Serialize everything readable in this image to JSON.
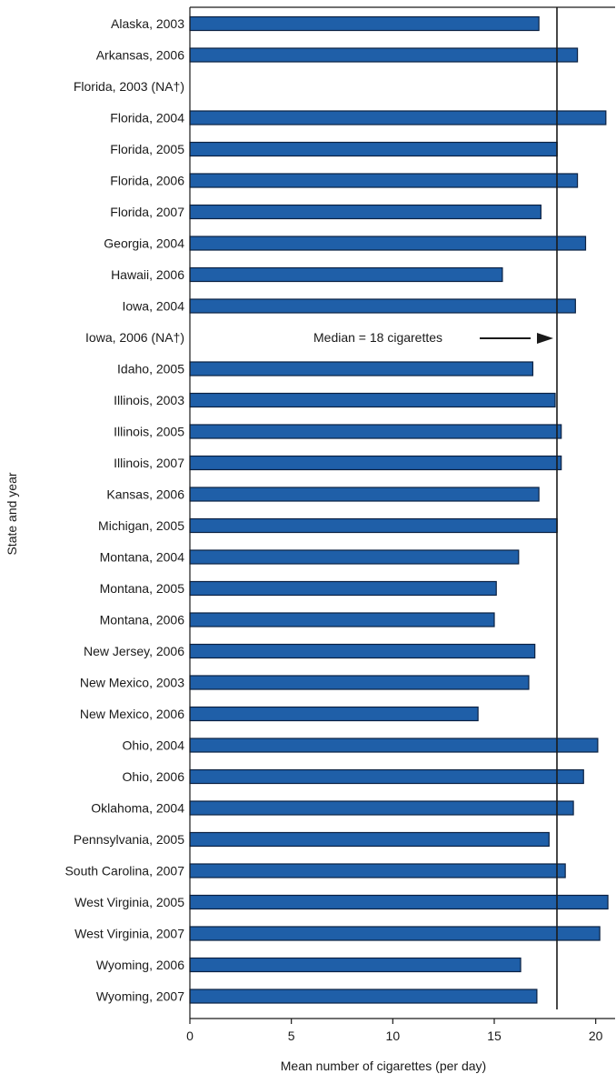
{
  "chart_data": {
    "type": "bar",
    "orientation": "horizontal",
    "xlabel": "Mean number of cigarettes (per day)",
    "ylabel": "State and year",
    "xlim": [
      0,
      21
    ],
    "xticks": [
      0,
      5,
      10,
      15,
      20
    ],
    "grid": false,
    "categories": [
      "Alaska, 2003",
      "Arkansas, 2006",
      "Florida, 2003 (NA†)",
      "Florida, 2004",
      "Florida, 2005",
      "Florida, 2006",
      "Florida, 2007",
      "Georgia, 2004",
      "Hawaii, 2006",
      "Iowa, 2004",
      "Iowa, 2006 (NA†)",
      "Idaho, 2005",
      "Illinois, 2003",
      "Illinois, 2005",
      "Illinois, 2007",
      "Kansas, 2006",
      "Michigan, 2005",
      "Montana, 2004",
      "Montana, 2005",
      "Montana, 2006",
      "New Jersey, 2006",
      "New Mexico, 2003",
      "New Mexico, 2006",
      "Ohio, 2004",
      "Ohio, 2006",
      "Oklahoma, 2004",
      "Pennsylvania, 2005",
      "South Carolina, 2007",
      "West Virginia, 2005",
      "West Virginia, 2007",
      "Wyoming, 2006",
      "Wyoming, 2007"
    ],
    "values": [
      17.2,
      19.1,
      null,
      20.5,
      18.1,
      19.1,
      17.3,
      19.5,
      15.4,
      19.0,
      null,
      16.9,
      18.0,
      18.3,
      18.3,
      17.2,
      18.1,
      16.2,
      15.1,
      15.0,
      17.0,
      16.7,
      14.2,
      20.1,
      19.4,
      18.9,
      17.7,
      18.5,
      20.6,
      20.2,
      16.3,
      17.1
    ],
    "bar_color": "#1f5fa8",
    "reference_line": {
      "value": 18,
      "label": "Median = 18 cigarettes"
    }
  }
}
